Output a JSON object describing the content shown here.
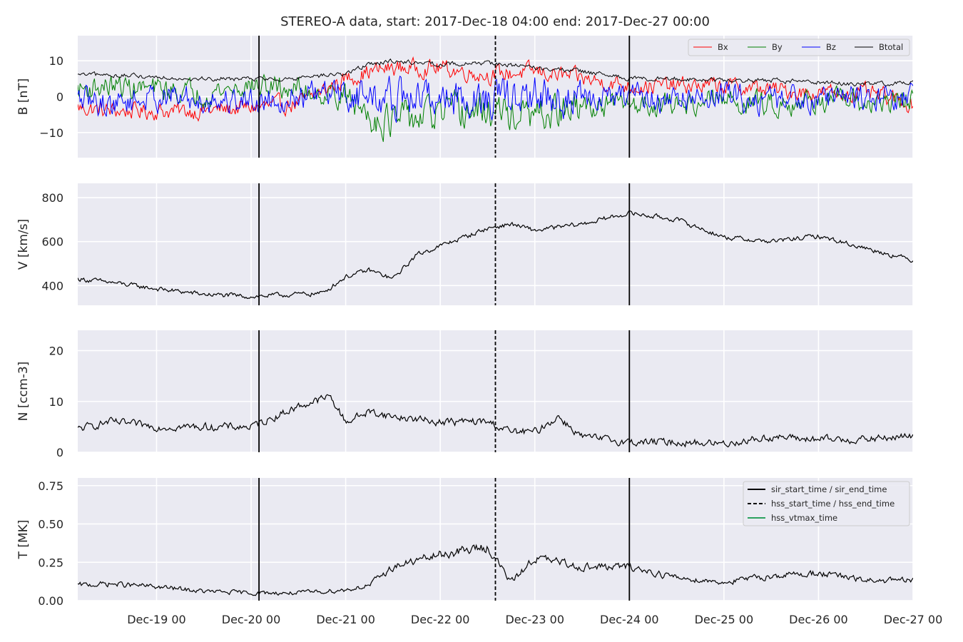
{
  "chart_data": {
    "type": "line",
    "title": "STEREO-A data, start: 2017-Dec-18 04:00  end: 2017-Dec-27 00:00",
    "x_range": [
      "2017-12-18 04:00",
      "2017-12-27 00:00"
    ],
    "x_ticks": [
      {
        "t": "2017-12-19 00:00",
        "label": "Dec-19 00"
      },
      {
        "t": "2017-12-20 00:00",
        "label": "Dec-20 00"
      },
      {
        "t": "2017-12-21 00:00",
        "label": "Dec-21 00"
      },
      {
        "t": "2017-12-22 00:00",
        "label": "Dec-22 00"
      },
      {
        "t": "2017-12-23 00:00",
        "label": "Dec-23 00"
      },
      {
        "t": "2017-12-24 00:00",
        "label": "Dec-24 00"
      },
      {
        "t": "2017-12-25 00:00",
        "label": "Dec-25 00"
      },
      {
        "t": "2017-12-26 00:00",
        "label": "Dec-26 00"
      },
      {
        "t": "2017-12-27 00:00",
        "label": "Dec-27 00"
      }
    ],
    "grid": true,
    "events": {
      "sir_start_time": "2017-12-20 02:00",
      "hss_start_time": "2017-12-22 14:00",
      "sir_end_time": "2017-12-24 00:00"
    },
    "legend_events": {
      "placement": "top-right of T panel",
      "entries": [
        {
          "label": "sir_start_time / sir_end_time",
          "style": "solid",
          "color": "#000000"
        },
        {
          "label": "hss_start_time / hss_end_time",
          "style": "dashed",
          "color": "#000000"
        },
        {
          "label": "hss_vtmax_time",
          "style": "solid",
          "color": "#2ca25f"
        }
      ]
    },
    "panels": [
      {
        "ylabel": "B [nT]",
        "ylim": [
          -17,
          17
        ],
        "yticks": [
          -10,
          0,
          10
        ],
        "legend": {
          "placement": "top-right",
          "entries": [
            "Bx",
            "By",
            "Bz",
            "Btotal"
          ]
        },
        "series": [
          {
            "name": "Bx",
            "color": "#ff0000",
            "x": [
              "2017-12-18 04:00",
              "2017-12-18 12:00",
              "2017-12-19 00:00",
              "2017-12-19 12:00",
              "2017-12-20 00:00",
              "2017-12-20 12:00",
              "2017-12-21 00:00",
              "2017-12-21 06:00",
              "2017-12-21 12:00",
              "2017-12-22 00:00",
              "2017-12-22 12:00",
              "2017-12-23 00:00",
              "2017-12-23 12:00",
              "2017-12-24 00:00",
              "2017-12-24 12:00",
              "2017-12-25 00:00",
              "2017-12-25 12:00",
              "2017-12-26 00:00",
              "2017-12-26 12:00",
              "2017-12-27 00:00"
            ],
            "values": [
              -3,
              -4,
              -4,
              -4,
              -3,
              -2,
              5,
              7,
              8,
              8,
              6,
              7,
              5,
              3,
              3,
              3,
              2,
              1,
              1,
              -2
            ]
          },
          {
            "name": "By",
            "color": "#008000",
            "x": [
              "2017-12-18 04:00",
              "2017-12-18 12:00",
              "2017-12-19 00:00",
              "2017-12-19 12:00",
              "2017-12-20 00:00",
              "2017-12-20 12:00",
              "2017-12-21 00:00",
              "2017-12-21 06:00",
              "2017-12-21 12:00",
              "2017-12-22 00:00",
              "2017-12-22 12:00",
              "2017-12-23 00:00",
              "2017-12-23 12:00",
              "2017-12-24 00:00",
              "2017-12-24 12:00",
              "2017-12-25 00:00",
              "2017-12-25 12:00",
              "2017-12-26 00:00",
              "2017-12-26 12:00",
              "2017-12-27 00:00"
            ],
            "values": [
              2,
              3,
              2,
              1,
              3,
              2,
              0,
              -5,
              -7,
              -5,
              -4,
              -6,
              -3,
              -2,
              -2,
              -1,
              -2,
              -1,
              -2,
              -1
            ]
          },
          {
            "name": "Bz",
            "color": "#0000ff",
            "x": [
              "2017-12-18 04:00",
              "2017-12-18 12:00",
              "2017-12-19 00:00",
              "2017-12-19 12:00",
              "2017-12-20 00:00",
              "2017-12-20 12:00",
              "2017-12-21 00:00",
              "2017-12-21 06:00",
              "2017-12-21 12:00",
              "2017-12-22 00:00",
              "2017-12-22 12:00",
              "2017-12-23 00:00",
              "2017-12-23 12:00",
              "2017-12-24 00:00",
              "2017-12-24 12:00",
              "2017-12-25 00:00",
              "2017-12-25 12:00",
              "2017-12-26 00:00",
              "2017-12-26 12:00",
              "2017-12-27 00:00"
            ],
            "values": [
              -1,
              -2,
              0,
              -1,
              -1,
              0,
              1,
              0,
              -1,
              0,
              -1,
              0,
              -1,
              0,
              -1,
              0,
              -1,
              0,
              0,
              0
            ]
          },
          {
            "name": "Btotal",
            "color": "#000000",
            "x": [
              "2017-12-18 04:00",
              "2017-12-18 12:00",
              "2017-12-19 00:00",
              "2017-12-19 12:00",
              "2017-12-20 00:00",
              "2017-12-20 12:00",
              "2017-12-21 00:00",
              "2017-12-21 06:00",
              "2017-12-21 12:00",
              "2017-12-22 00:00",
              "2017-12-22 12:00",
              "2017-12-23 00:00",
              "2017-12-23 12:00",
              "2017-12-24 00:00",
              "2017-12-24 12:00",
              "2017-12-25 00:00",
              "2017-12-25 12:00",
              "2017-12-26 00:00",
              "2017-12-26 12:00",
              "2017-12-27 00:00"
            ],
            "values": [
              6,
              6,
              5.5,
              5,
              5,
              5,
              6.5,
              9,
              10,
              9,
              9.5,
              8,
              7,
              5,
              5,
              4.5,
              4.5,
              4,
              3.5,
              4
            ]
          }
        ]
      },
      {
        "ylabel": "V [km/s]",
        "ylim": [
          310,
          865
        ],
        "yticks": [
          400,
          600,
          800
        ],
        "series": [
          {
            "name": "",
            "color": "#000000",
            "x": [
              "2017-12-18 04:00",
              "2017-12-18 12:00",
              "2017-12-19 00:00",
              "2017-12-19 12:00",
              "2017-12-20 00:00",
              "2017-12-20 12:00",
              "2017-12-20 18:00",
              "2017-12-21 00:00",
              "2017-12-21 06:00",
              "2017-12-21 12:00",
              "2017-12-21 18:00",
              "2017-12-22 00:00",
              "2017-12-22 12:00",
              "2017-12-22 18:00",
              "2017-12-23 00:00",
              "2017-12-23 12:00",
              "2017-12-24 00:00",
              "2017-12-24 12:00",
              "2017-12-25 00:00",
              "2017-12-25 12:00",
              "2017-12-26 00:00",
              "2017-12-26 12:00",
              "2017-12-27 00:00"
            ],
            "values": [
              430,
              415,
              385,
              360,
              350,
              360,
              365,
              440,
              470,
              430,
              540,
              580,
              660,
              680,
              650,
              680,
              730,
              700,
              620,
              600,
              625,
              570,
              515
            ]
          }
        ]
      },
      {
        "ylabel": "N [ccm-3]",
        "ylim": [
          0,
          24
        ],
        "yticks": [
          0,
          10,
          20
        ],
        "series": [
          {
            "name": "",
            "color": "#000000",
            "x": [
              "2017-12-18 04:00",
              "2017-12-18 12:00",
              "2017-12-19 00:00",
              "2017-12-19 12:00",
              "2017-12-20 00:00",
              "2017-12-20 12:00",
              "2017-12-20 20:00",
              "2017-12-21 00:00",
              "2017-12-21 06:00",
              "2017-12-21 12:00",
              "2017-12-22 00:00",
              "2017-12-22 12:00",
              "2017-12-22 18:00",
              "2017-12-23 00:00",
              "2017-12-23 06:00",
              "2017-12-23 12:00",
              "2017-12-24 00:00",
              "2017-12-24 12:00",
              "2017-12-25 00:00",
              "2017-12-25 12:00",
              "2017-12-26 00:00",
              "2017-12-26 12:00",
              "2017-12-27 00:00"
            ],
            "values": [
              4.5,
              6,
              5,
              5,
              5,
              9,
              11,
              6,
              8,
              7,
              6,
              6,
              4,
              4,
              7,
              3,
              2,
              2,
              1.7,
              3,
              2.5,
              2.5,
              3.2
            ]
          }
        ]
      },
      {
        "ylabel": "T [MK]",
        "ylim": [
          0,
          0.8
        ],
        "yticks": [
          0.0,
          0.25,
          0.5,
          0.75
        ],
        "series": [
          {
            "name": "",
            "color": "#000000",
            "x": [
              "2017-12-18 04:00",
              "2017-12-18 12:00",
              "2017-12-19 00:00",
              "2017-12-19 12:00",
              "2017-12-20 00:00",
              "2017-12-20 12:00",
              "2017-12-21 00:00",
              "2017-12-21 06:00",
              "2017-12-21 12:00",
              "2017-12-22 00:00",
              "2017-12-22 12:00",
              "2017-12-22 18:00",
              "2017-12-23 00:00",
              "2017-12-23 12:00",
              "2017-12-24 00:00",
              "2017-12-24 12:00",
              "2017-12-25 00:00",
              "2017-12-25 12:00",
              "2017-12-26 00:00",
              "2017-12-26 12:00",
              "2017-12-27 00:00"
            ],
            "values": [
              0.1,
              0.11,
              0.09,
              0.06,
              0.05,
              0.05,
              0.07,
              0.1,
              0.22,
              0.3,
              0.35,
              0.12,
              0.28,
              0.22,
              0.22,
              0.15,
              0.12,
              0.16,
              0.18,
              0.13,
              0.13
            ]
          }
        ]
      }
    ]
  }
}
